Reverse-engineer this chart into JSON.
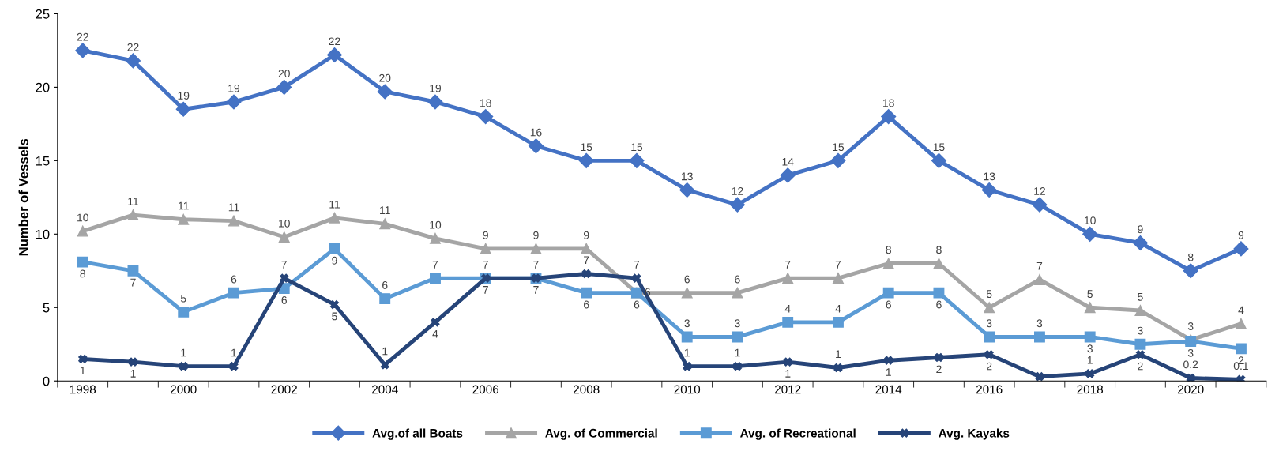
{
  "chart_data": {
    "type": "line",
    "ylabel": "Number of Vessels",
    "x": [
      1998,
      1999,
      2000,
      2001,
      2002,
      2003,
      2004,
      2005,
      2006,
      2007,
      2008,
      2009,
      2010,
      2011,
      2012,
      2013,
      2014,
      2015,
      2016,
      2017,
      2018,
      2019,
      2020,
      2021
    ],
    "xlim": [
      1997.5,
      2021.5
    ],
    "xticks": [
      1998,
      2000,
      2002,
      2004,
      2006,
      2008,
      2010,
      2012,
      2014,
      2016,
      2018,
      2020
    ],
    "ylim": [
      0,
      25
    ],
    "yticks": [
      0,
      5,
      10,
      15,
      20,
      25
    ],
    "grid": false,
    "legend": "bottom",
    "line_style": "solid",
    "series": [
      {
        "name": "Avg.of all Boats",
        "color": "#4472c4",
        "marker": "diamond",
        "values": [
          22.5,
          21.8,
          18.5,
          19.0,
          20.0,
          22.2,
          19.7,
          19.0,
          18.0,
          16.0,
          15.0,
          15.0,
          13.0,
          12.0,
          14.0,
          15.0,
          18.0,
          15.0,
          13.0,
          12.0,
          10.0,
          9.4,
          7.5,
          9.0
        ],
        "value_labels": [
          "22",
          "22",
          "19",
          "19",
          "20",
          "22",
          "20",
          "19",
          "18",
          "16",
          "15",
          "15",
          "13",
          "12",
          "14",
          "15",
          "18",
          "15",
          "13",
          "12",
          "10",
          "9",
          "8",
          "9"
        ]
      },
      {
        "name": "Avg. of Commercial",
        "color": "#a5a5a5",
        "marker": "triangle",
        "values": [
          10.2,
          11.3,
          11.0,
          10.9,
          9.8,
          11.1,
          10.7,
          9.7,
          9.0,
          9.0,
          9.0,
          6.0,
          6.0,
          6.0,
          7.0,
          7.0,
          8.0,
          8.0,
          5.0,
          6.9,
          5.0,
          4.8,
          2.8,
          3.9
        ],
        "value_labels": [
          "10",
          "11",
          "11",
          "11",
          "10",
          "11",
          "11",
          "10",
          "9",
          "9",
          "9",
          "6",
          "6",
          "6",
          "7",
          "7",
          "8",
          "8",
          "5",
          "7",
          "5",
          "5",
          "3",
          "4"
        ]
      },
      {
        "name": "Avg. of Recreational",
        "color": "#5b9bd5",
        "marker": "square",
        "values": [
          8.1,
          7.5,
          4.7,
          6.0,
          6.3,
          9.0,
          5.6,
          7.0,
          7.0,
          7.0,
          6.0,
          6.0,
          3.0,
          3.0,
          4.0,
          4.0,
          6.0,
          6.0,
          3.0,
          3.0,
          3.0,
          2.5,
          2.7,
          2.2
        ],
        "value_labels": [
          "8",
          "7",
          "5",
          "6",
          "6",
          "9",
          "6",
          "7",
          "7",
          "7",
          "6",
          "6",
          "3",
          "3",
          "4",
          "4",
          "6",
          "6",
          "3",
          "3",
          "3",
          "3",
          "3",
          "2"
        ]
      },
      {
        "name": "Avg. Kayaks",
        "color": "#264478",
        "marker": "cross",
        "values": [
          1.5,
          1.3,
          1.0,
          1.0,
          7.0,
          5.2,
          1.1,
          4.0,
          7.0,
          7.0,
          7.3,
          7.0,
          1.0,
          1.0,
          1.3,
          0.9,
          1.4,
          1.6,
          1.8,
          0.3,
          0.5,
          1.8,
          0.2,
          0.1
        ],
        "value_labels": [
          "1",
          "1",
          "1",
          "1",
          "7",
          "5",
          "1",
          "4",
          "7",
          "7",
          "7",
          "7",
          "1",
          "1",
          "1",
          "1",
          "1",
          "2",
          "2",
          null,
          "1",
          "2",
          "0.2",
          "0.1"
        ]
      }
    ]
  }
}
